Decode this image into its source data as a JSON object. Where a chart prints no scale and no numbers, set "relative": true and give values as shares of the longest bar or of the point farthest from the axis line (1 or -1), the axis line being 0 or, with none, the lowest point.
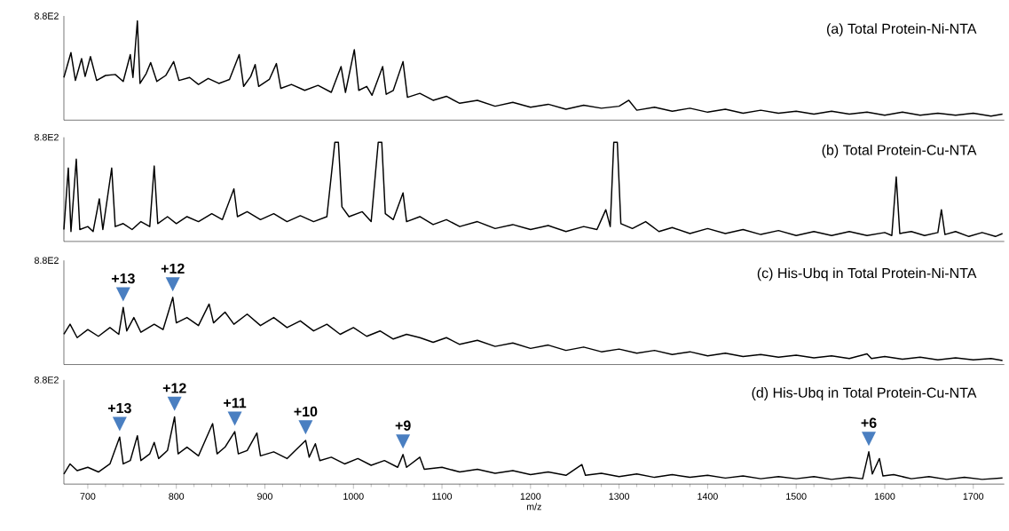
{
  "chart_data": [
    {
      "type": "line",
      "title": "(a) Total Protein-Ni-NTA",
      "relative": true,
      "color": "#000000",
      "xlim": [
        673,
        1735
      ],
      "tick_labels": false,
      "annotations": [
        "8.8E2"
      ],
      "x": [
        673,
        681,
        686,
        693,
        697,
        703,
        710,
        720,
        731,
        740,
        748,
        751,
        756,
        759,
        766,
        771,
        778,
        788,
        797,
        803,
        815,
        825,
        836,
        848,
        860,
        871,
        876,
        884,
        889,
        893,
        905,
        913,
        918,
        930,
        945,
        960,
        975,
        986,
        991,
        1001,
        1006,
        1015,
        1021,
        1033,
        1037,
        1045,
        1056,
        1061,
        1075,
        1090,
        1105,
        1120,
        1140,
        1160,
        1180,
        1200,
        1220,
        1240,
        1260,
        1280,
        1300,
        1311,
        1320,
        1340,
        1360,
        1380,
        1400,
        1420,
        1440,
        1460,
        1480,
        1500,
        1520,
        1540,
        1560,
        1580,
        1600,
        1620,
        1640,
        1660,
        1680,
        1700,
        1720,
        1733
      ],
      "values": [
        0.43,
        0.68,
        0.4,
        0.62,
        0.44,
        0.64,
        0.4,
        0.45,
        0.46,
        0.39,
        0.66,
        0.43,
        1.0,
        0.37,
        0.47,
        0.58,
        0.39,
        0.45,
        0.59,
        0.4,
        0.43,
        0.36,
        0.42,
        0.37,
        0.41,
        0.66,
        0.34,
        0.44,
        0.56,
        0.34,
        0.41,
        0.57,
        0.32,
        0.36,
        0.3,
        0.35,
        0.28,
        0.54,
        0.28,
        0.71,
        0.3,
        0.34,
        0.25,
        0.54,
        0.26,
        0.3,
        0.59,
        0.23,
        0.27,
        0.2,
        0.24,
        0.17,
        0.2,
        0.14,
        0.18,
        0.13,
        0.16,
        0.11,
        0.15,
        0.12,
        0.14,
        0.2,
        0.1,
        0.13,
        0.09,
        0.12,
        0.08,
        0.11,
        0.07,
        0.1,
        0.07,
        0.09,
        0.06,
        0.09,
        0.06,
        0.08,
        0.05,
        0.08,
        0.05,
        0.07,
        0.05,
        0.07,
        0.04,
        0.06
      ]
    },
    {
      "type": "line",
      "title": "(b) Total Protein-Cu-NTA",
      "relative": true,
      "color": "#000000",
      "xlim": [
        673,
        1735
      ],
      "tick_labels": false,
      "annotations": [
        "8.8E2"
      ],
      "x": [
        673,
        678,
        681,
        687,
        691,
        700,
        706,
        713,
        717,
        727,
        731,
        740,
        750,
        760,
        770,
        775,
        779,
        790,
        800,
        812,
        825,
        840,
        852,
        865,
        869,
        880,
        895,
        910,
        925,
        940,
        955,
        970,
        979,
        983,
        987,
        995,
        1010,
        1020,
        1028,
        1032,
        1036,
        1045,
        1056,
        1060,
        1075,
        1090,
        1105,
        1120,
        1140,
        1160,
        1180,
        1200,
        1220,
        1240,
        1260,
        1275,
        1285,
        1290,
        1294,
        1298,
        1302,
        1315,
        1330,
        1345,
        1360,
        1380,
        1400,
        1420,
        1440,
        1460,
        1480,
        1500,
        1520,
        1540,
        1560,
        1580,
        1600,
        1608,
        1613,
        1617,
        1630,
        1645,
        1660,
        1664,
        1668,
        1680,
        1695,
        1710,
        1725,
        1733
      ],
      "values": [
        0.12,
        0.74,
        0.1,
        0.83,
        0.12,
        0.15,
        0.1,
        0.43,
        0.12,
        0.74,
        0.15,
        0.18,
        0.12,
        0.2,
        0.15,
        0.76,
        0.18,
        0.25,
        0.18,
        0.25,
        0.2,
        0.28,
        0.22,
        0.53,
        0.25,
        0.3,
        0.22,
        0.28,
        0.2,
        0.26,
        0.2,
        0.25,
        1.0,
        1.0,
        0.35,
        0.25,
        0.3,
        0.2,
        1.0,
        1.0,
        0.28,
        0.22,
        0.49,
        0.2,
        0.25,
        0.17,
        0.22,
        0.15,
        0.2,
        0.13,
        0.17,
        0.12,
        0.16,
        0.1,
        0.15,
        0.12,
        0.32,
        0.15,
        1.0,
        1.0,
        0.18,
        0.13,
        0.2,
        0.1,
        0.14,
        0.08,
        0.13,
        0.08,
        0.12,
        0.07,
        0.11,
        0.06,
        0.1,
        0.06,
        0.1,
        0.06,
        0.09,
        0.06,
        0.65,
        0.08,
        0.1,
        0.06,
        0.09,
        0.32,
        0.07,
        0.1,
        0.05,
        0.09,
        0.05,
        0.08
      ]
    },
    {
      "type": "line",
      "title": "(c) His-Ubq in Total Protein-Ni-NTA",
      "relative": true,
      "color": "#000000",
      "xlim": [
        673,
        1735
      ],
      "tick_labels": false,
      "annotations": [
        "8.8E2",
        {
          "text": "+13",
          "x": 740,
          "y": 0.85
        },
        {
          "text": "+12",
          "x": 796,
          "y": 1.0
        }
      ],
      "x": [
        673,
        680,
        688,
        700,
        712,
        725,
        735,
        740,
        744,
        752,
        760,
        775,
        785,
        791,
        796,
        800,
        812,
        825,
        837,
        842,
        855,
        865,
        880,
        895,
        910,
        925,
        940,
        955,
        970,
        985,
        1000,
        1015,
        1030,
        1045,
        1060,
        1075,
        1090,
        1105,
        1120,
        1140,
        1160,
        1180,
        1200,
        1220,
        1240,
        1260,
        1280,
        1300,
        1320,
        1340,
        1360,
        1380,
        1400,
        1420,
        1440,
        1460,
        1480,
        1500,
        1520,
        1540,
        1560,
        1580,
        1585,
        1600,
        1620,
        1640,
        1660,
        1680,
        1700,
        1720,
        1733
      ],
      "values": [
        0.45,
        0.6,
        0.4,
        0.52,
        0.42,
        0.55,
        0.45,
        0.85,
        0.5,
        0.7,
        0.48,
        0.6,
        0.52,
        0.78,
        1.0,
        0.62,
        0.7,
        0.58,
        0.9,
        0.62,
        0.78,
        0.6,
        0.75,
        0.58,
        0.7,
        0.55,
        0.65,
        0.5,
        0.6,
        0.45,
        0.55,
        0.42,
        0.5,
        0.38,
        0.45,
        0.4,
        0.33,
        0.4,
        0.3,
        0.36,
        0.27,
        0.32,
        0.24,
        0.29,
        0.21,
        0.26,
        0.19,
        0.23,
        0.17,
        0.21,
        0.15,
        0.19,
        0.13,
        0.17,
        0.12,
        0.15,
        0.11,
        0.14,
        0.1,
        0.13,
        0.09,
        0.16,
        0.09,
        0.12,
        0.08,
        0.11,
        0.07,
        0.1,
        0.07,
        0.09,
        0.06
      ]
    },
    {
      "type": "line",
      "title": "(d) His-Ubq in Total Protein-Cu-NTA",
      "xlabel": "m/z",
      "relative": true,
      "color": "#000000",
      "xlim": [
        673,
        1735
      ],
      "xticks": [
        700,
        800,
        900,
        1000,
        1100,
        1200,
        1300,
        1400,
        1500,
        1600,
        1700
      ],
      "tick_labels": "x",
      "annotations": [
        "8.8E2",
        {
          "text": "+13",
          "x": 736,
          "y": 0.7
        },
        {
          "text": "+12",
          "x": 798,
          "y": 1.0
        },
        {
          "text": "+11",
          "x": 866,
          "y": 0.78
        },
        {
          "text": "+10",
          "x": 946,
          "y": 0.65
        },
        {
          "text": "+9",
          "x": 1056,
          "y": 0.44
        },
        {
          "text": "+6",
          "x": 1582,
          "y": 0.48
        }
      ],
      "x": [
        673,
        680,
        688,
        700,
        712,
        725,
        736,
        740,
        748,
        756,
        760,
        770,
        775,
        780,
        790,
        798,
        802,
        812,
        825,
        841,
        846,
        855,
        866,
        870,
        880,
        891,
        895,
        910,
        925,
        946,
        950,
        957,
        962,
        975,
        990,
        1005,
        1020,
        1035,
        1050,
        1056,
        1060,
        1075,
        1080,
        1100,
        1120,
        1140,
        1160,
        1180,
        1200,
        1220,
        1240,
        1258,
        1262,
        1280,
        1300,
        1320,
        1340,
        1360,
        1380,
        1400,
        1420,
        1440,
        1460,
        1480,
        1500,
        1520,
        1540,
        1560,
        1575,
        1582,
        1586,
        1594,
        1598,
        1610,
        1630,
        1650,
        1670,
        1690,
        1710,
        1733
      ],
      "values": [
        0.15,
        0.3,
        0.2,
        0.25,
        0.18,
        0.3,
        0.7,
        0.3,
        0.35,
        0.72,
        0.35,
        0.45,
        0.62,
        0.38,
        0.5,
        1.0,
        0.45,
        0.55,
        0.42,
        0.9,
        0.45,
        0.55,
        0.78,
        0.45,
        0.5,
        0.76,
        0.42,
        0.48,
        0.38,
        0.65,
        0.4,
        0.6,
        0.35,
        0.4,
        0.3,
        0.38,
        0.28,
        0.35,
        0.25,
        0.44,
        0.25,
        0.4,
        0.22,
        0.25,
        0.18,
        0.22,
        0.16,
        0.2,
        0.14,
        0.18,
        0.13,
        0.29,
        0.13,
        0.16,
        0.11,
        0.15,
        0.1,
        0.14,
        0.1,
        0.13,
        0.09,
        0.12,
        0.08,
        0.11,
        0.08,
        0.11,
        0.07,
        0.1,
        0.08,
        0.48,
        0.15,
        0.38,
        0.12,
        0.14,
        0.08,
        0.11,
        0.07,
        0.1,
        0.07,
        0.09
      ]
    }
  ]
}
